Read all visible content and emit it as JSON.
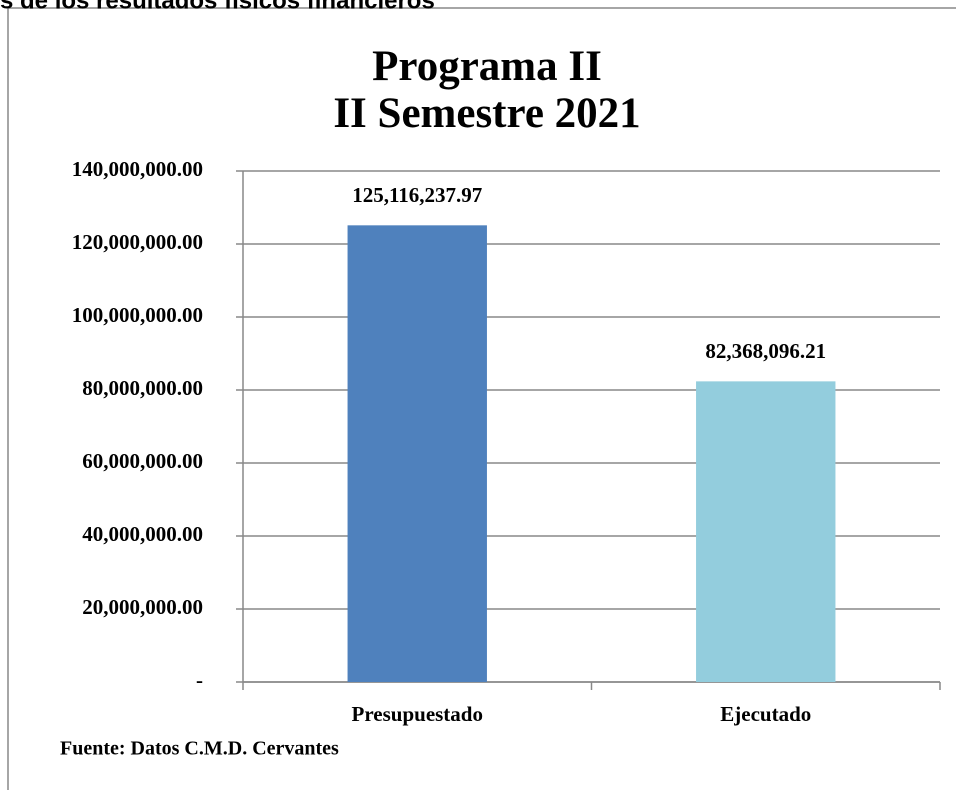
{
  "chart_data": {
    "type": "bar",
    "header": "s de los resultados físicos financieros",
    "title": [
      "Programa II",
      "II Semestre 2021"
    ],
    "source": "Fuente: Datos C.M.D. Cervantes",
    "categories": [
      "Presupuestado",
      "Ejecutado"
    ],
    "values": [
      125116237.97,
      82368096.21
    ],
    "value_labels": [
      "125,116,237.97",
      "82,368,096.21"
    ],
    "colors": [
      "#4f81bd",
      "#93cddd"
    ],
    "ylim": [
      0,
      140000000
    ],
    "yticks": [
      {
        "value": 0,
        "label": "-"
      },
      {
        "value": 20000000,
        "label": "20,000,000.00"
      },
      {
        "value": 40000000,
        "label": "40,000,000.00"
      },
      {
        "value": 60000000,
        "label": "60,000,000.00"
      },
      {
        "value": 80000000,
        "label": "80,000,000.00"
      },
      {
        "value": 100000000,
        "label": "100,000,000.00"
      },
      {
        "value": 120000000,
        "label": "120,000,000.00"
      },
      {
        "value": 140000000,
        "label": "140,000,000.00"
      }
    ],
    "grid": true
  }
}
